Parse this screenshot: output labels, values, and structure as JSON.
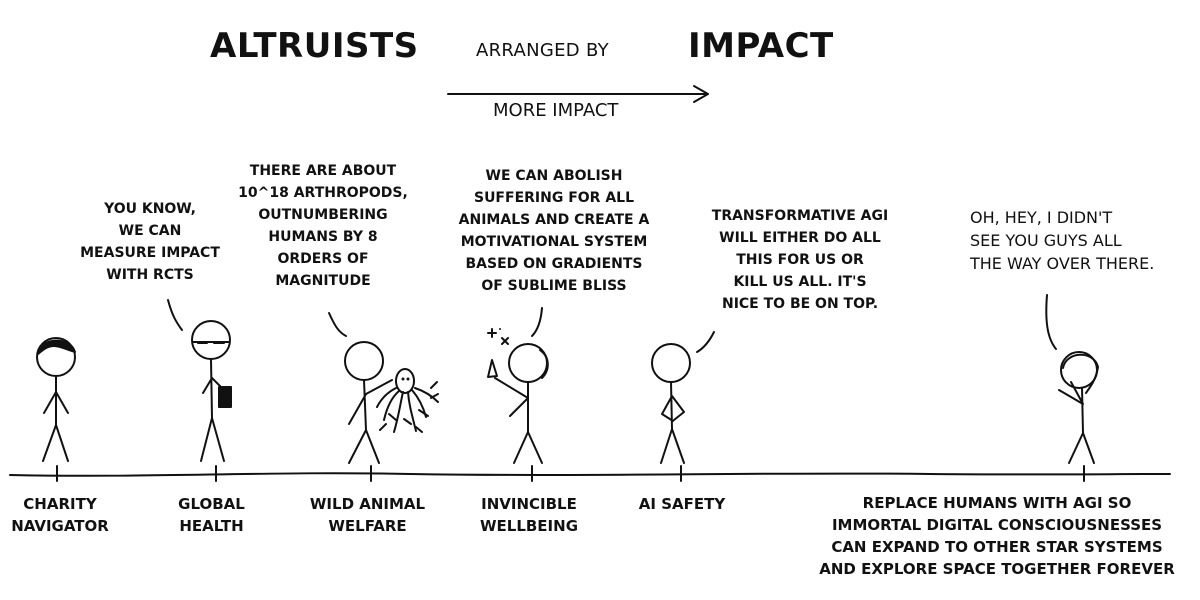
{
  "title": {
    "left": "ALTRUISTS",
    "small": "ARRANGED BY",
    "right": "IMPACT"
  },
  "arrow_label": "MORE IMPACT",
  "speech": {
    "global_health": "YOU KNOW,\nWE CAN\nMEASURE IMPACT\nWITH RCTS",
    "wild_animal": "THERE ARE ABOUT\n10^18 ARTHROPODS,\nOUTNUMBERING\nHUMANS BY 8\nORDERS OF\nMAGNITUDE",
    "invincible_wellbeing": "WE CAN ABOLISH\nSUFFERING FOR ALL\nANIMALS AND CREATE A\nMOTIVATIONAL SYSTEM\nBASED ON GRADIENTS\nOF SUBLIME BLISS",
    "ai_safety": "TRANSFORMATIVE AGI\nWILL EITHER DO ALL\nTHIS FOR US OR\nKILL US ALL. IT'S\nNICE TO BE ON TOP.",
    "far_right": "OH, HEY, I DIDN'T\nSEE YOU GUYS ALL\nTHE WAY OVER THERE."
  },
  "captions": {
    "charity_navigator": "CHARITY\nNAVIGATOR",
    "global_health": "GLOBAL\nHEALTH",
    "wild_animal_welfare": "WILD ANIMAL\nWELFARE",
    "invincible_wellbeing": "INVINCIBLE\nWELLBEING",
    "ai_safety": "AI SAFETY",
    "replace_humans": "REPLACE HUMANS WITH AGI SO\nIMMORTAL DIGITAL CONSCIOUSNESSES\nCAN EXPAND TO OTHER STAR SYSTEMS\nAND EXPLORE SPACE TOGETHER FOREVER"
  },
  "colors": {
    "ink": "#111111",
    "background": "#ffffff"
  }
}
